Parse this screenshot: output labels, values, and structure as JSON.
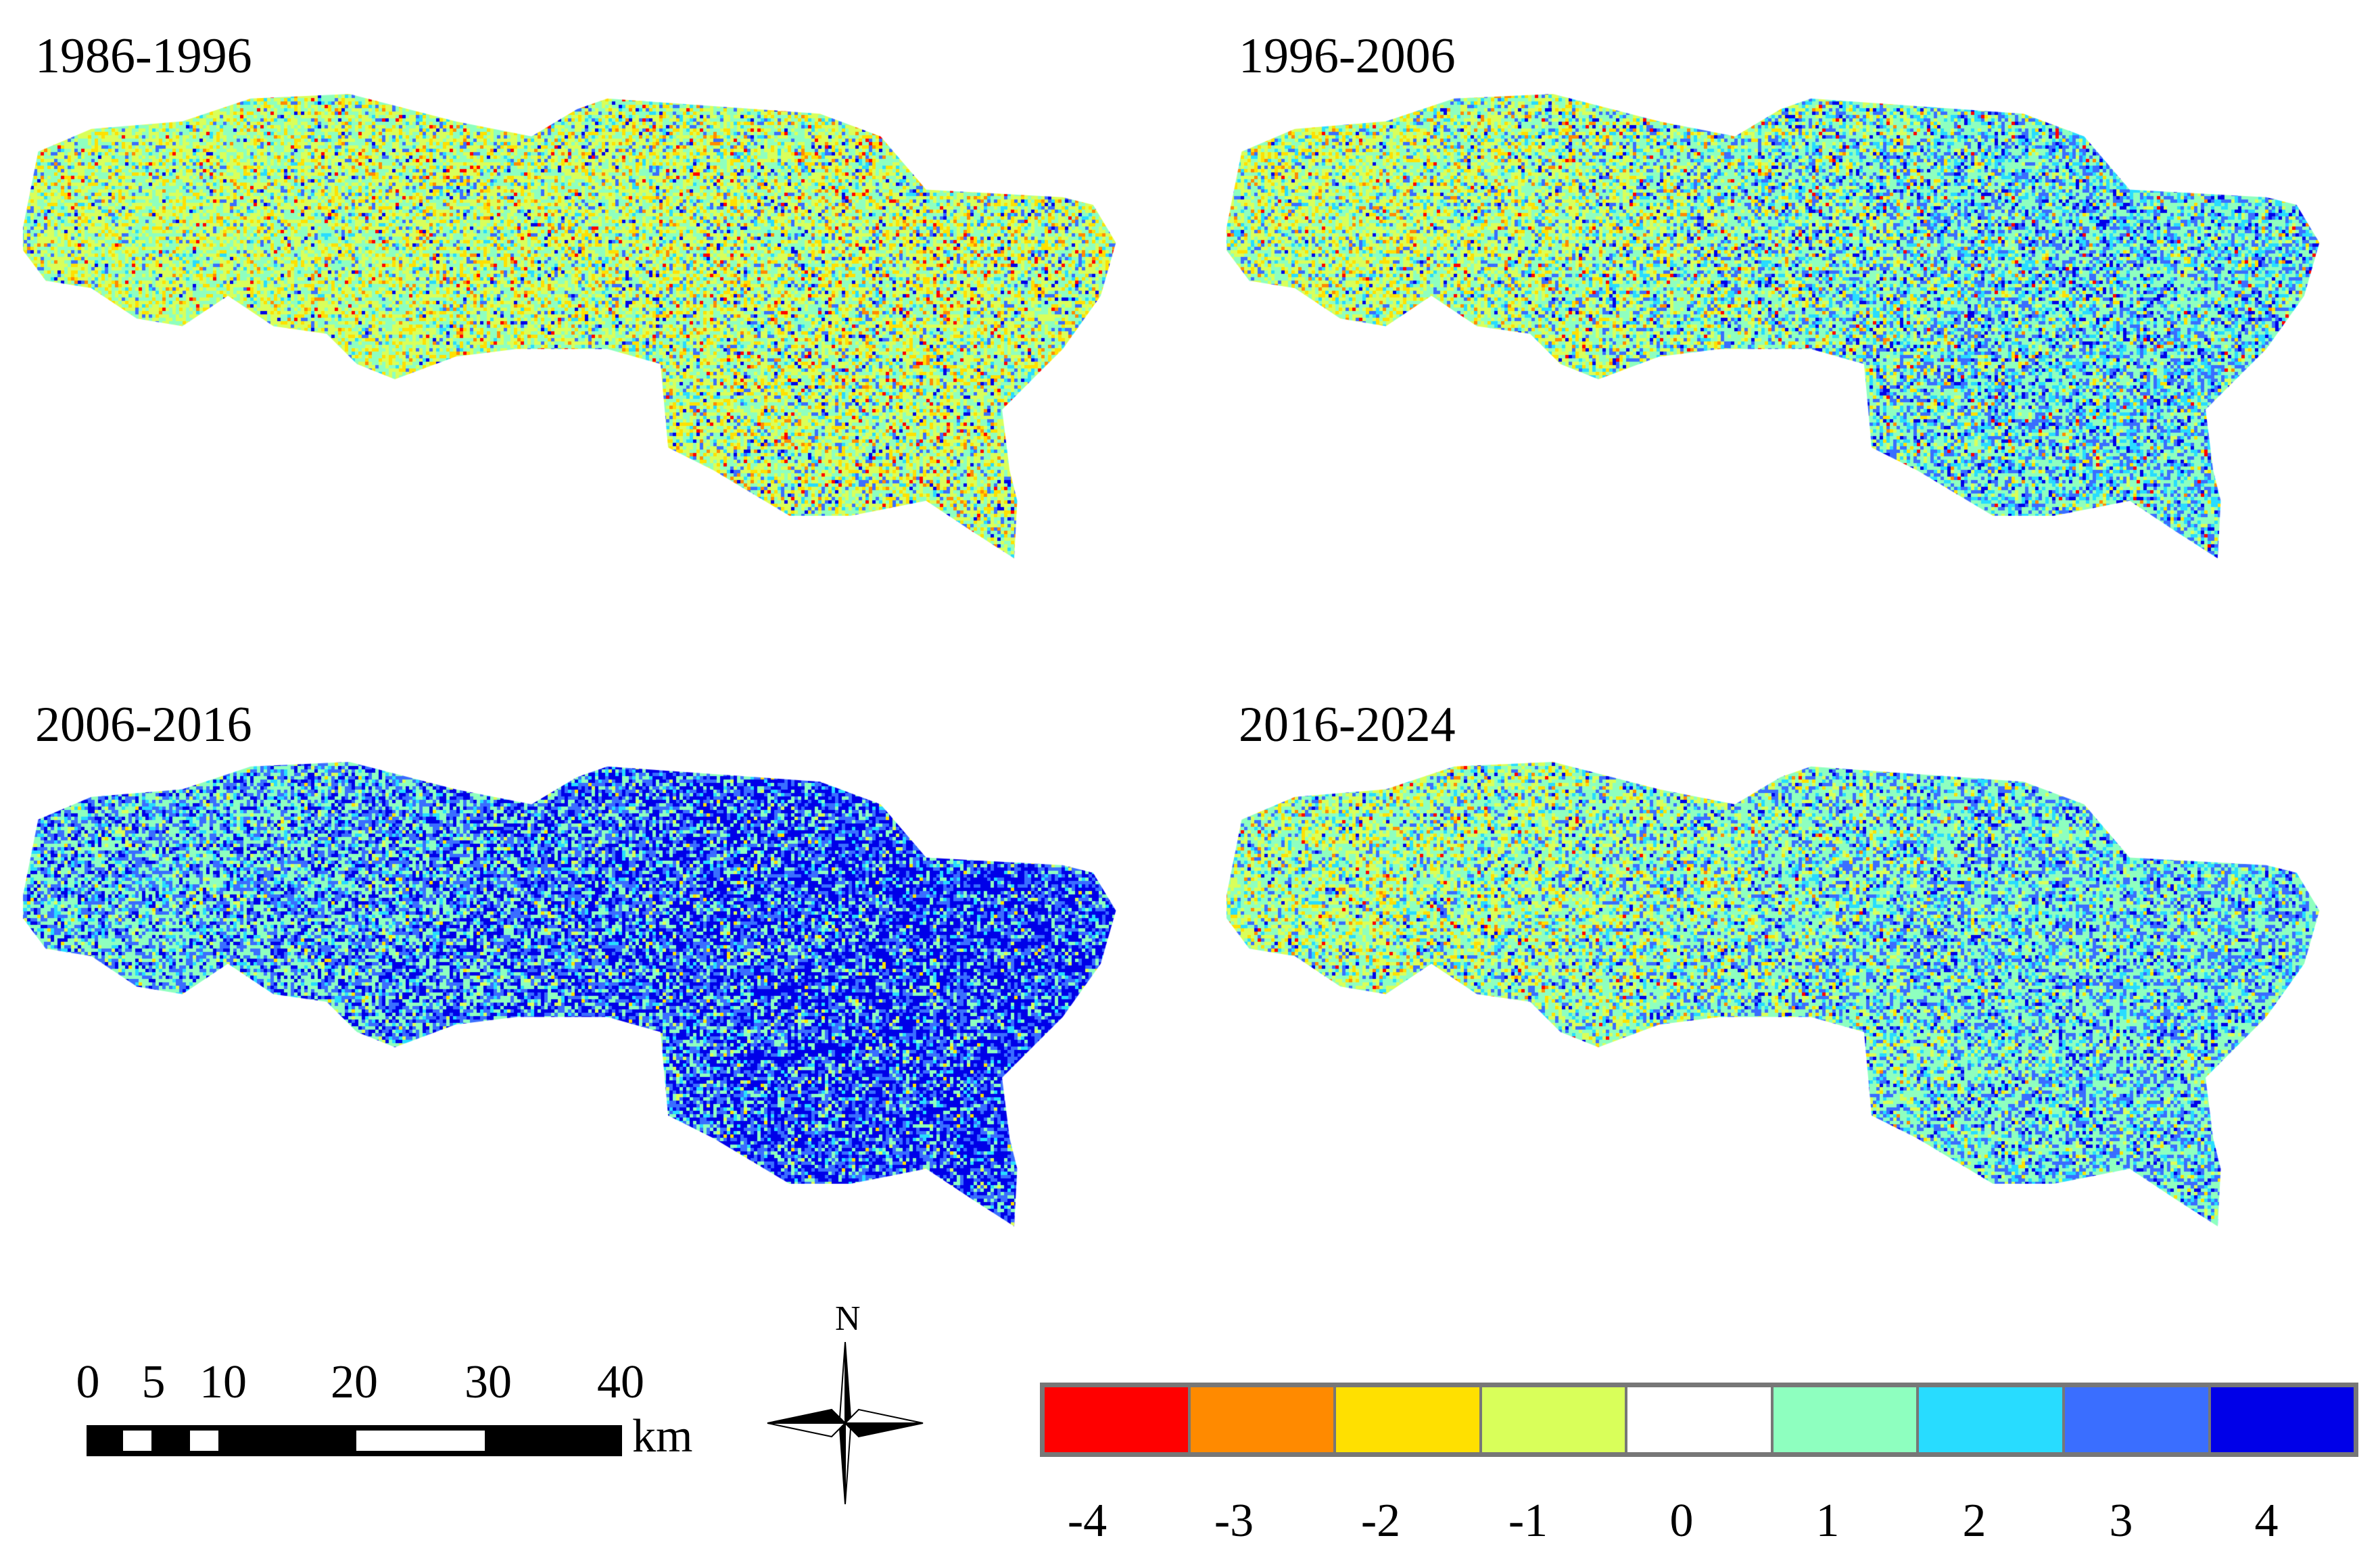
{
  "panels": [
    {
      "title": "1986-1996"
    },
    {
      "title": "1996-2006"
    },
    {
      "title": "2006-2016"
    },
    {
      "title": "2016-2024"
    }
  ],
  "scale_bar": {
    "ticks": [
      "0",
      "5",
      "10",
      "20",
      "30",
      "40"
    ],
    "unit": "km"
  },
  "north_arrow": {
    "label": "N"
  },
  "legend": {
    "classes": [
      {
        "label": "-4",
        "color": "#ff0000"
      },
      {
        "label": "-3",
        "color": "#ff8a00"
      },
      {
        "label": "-2",
        "color": "#ffe000"
      },
      {
        "label": "-1",
        "color": "#d9ff5a"
      },
      {
        "label": "0",
        "color": "#ffffff"
      },
      {
        "label": "1",
        "color": "#8effbf"
      },
      {
        "label": "2",
        "color": "#28dcff"
      },
      {
        "label": "3",
        "color": "#3a6eff"
      },
      {
        "label": "4",
        "color": "#0000e8"
      }
    ]
  }
}
